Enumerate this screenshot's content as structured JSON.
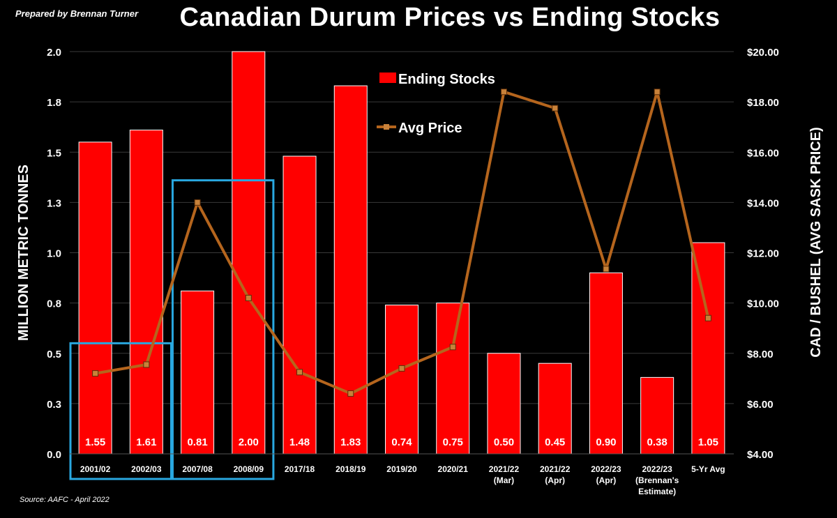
{
  "header": {
    "prepared_by": "Prepared by Brennan Turner",
    "title": "Canadian Durum Prices vs Ending Stocks"
  },
  "footer": {
    "source": "Source: AAFC -  April 2022"
  },
  "colors": {
    "background": "#000000",
    "bars": "#ff0000",
    "line": "#b5651d",
    "marker": "#c8823a",
    "highlight_box": "#29a8e0",
    "grid": "#3a3a3a",
    "text": "#ffffff"
  },
  "chart_data": {
    "type": "bar",
    "title": "Canadian Durum Prices vs Ending Stocks",
    "categories": [
      [
        "2001/02"
      ],
      [
        "2002/03"
      ],
      [
        "2007/08"
      ],
      [
        "2008/09"
      ],
      [
        "2017/18"
      ],
      [
        "2018/19"
      ],
      [
        "2019/20"
      ],
      [
        "2020/21"
      ],
      [
        "2021/22",
        "(Mar)"
      ],
      [
        "2021/22",
        "(Apr)"
      ],
      [
        "2022/23",
        "(Apr)"
      ],
      [
        "2022/23",
        "(Brennan's",
        "Estimate)"
      ],
      [
        "5-Yr Avg"
      ]
    ],
    "series": [
      {
        "name": "Ending Stocks",
        "type": "bar",
        "axis": "left",
        "values": [
          1.55,
          1.61,
          0.81,
          2.0,
          1.48,
          1.83,
          0.74,
          0.75,
          0.5,
          0.45,
          0.9,
          0.38,
          1.05
        ],
        "data_labels": [
          "1.55",
          "1.61",
          "0.81",
          "2.00",
          "1.48",
          "1.83",
          "0.74",
          "0.75",
          "0.50",
          "0.45",
          "0.90",
          "0.38",
          "1.05"
        ]
      },
      {
        "name": "Avg Price",
        "type": "line",
        "axis": "right",
        "values": [
          7.2,
          7.55,
          14.0,
          10.2,
          7.25,
          6.4,
          7.4,
          8.25,
          18.4,
          17.75,
          11.35,
          18.4,
          9.4
        ]
      }
    ],
    "y_left": {
      "label": "MILLION METRIC TONNES",
      "range": [
        0,
        2.0
      ],
      "ticks": [
        0,
        0.25,
        0.5,
        0.75,
        1.0,
        1.25,
        1.5,
        1.75,
        2.0
      ],
      "tick_labels": [
        "0.0",
        "0.3",
        "0.5",
        "0.8",
        "1.0",
        "1.3",
        "1.5",
        "1.8",
        "2.0"
      ]
    },
    "y_right": {
      "label": "CAD / BUSHEL (AVG SASK PRICE)",
      "range": [
        4,
        20
      ],
      "ticks": [
        4,
        6,
        8,
        10,
        12,
        14,
        16,
        18,
        20
      ],
      "tick_labels": [
        "$4.00",
        "$6.00",
        "$8.00",
        "$10.00",
        "$12.00",
        "$14.00",
        "$16.00",
        "$18.00",
        "$20.00"
      ]
    },
    "grid": true,
    "legend": "top-center",
    "highlight_boxes": [
      {
        "from_category": 0,
        "to_category": 1,
        "top_value_left": 0.55
      },
      {
        "from_category": 2,
        "to_category": 3,
        "top_value_left": 1.36
      }
    ]
  }
}
